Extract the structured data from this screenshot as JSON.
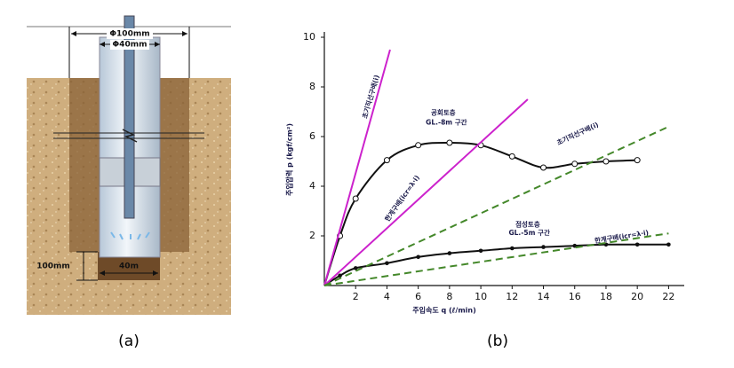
{
  "diagram": {
    "outer_diameter": "Φ100mm",
    "inner_diameter": "Φ40mm",
    "depth": "100mm",
    "bottom_width": "40m",
    "label": "(a)"
  },
  "chart_data": {
    "type": "line",
    "label": "(b)",
    "x_label": "주입속도 q (ℓ/min)",
    "y_label": "주입압력 p (kgf/cm²)",
    "xlim": [
      0,
      23
    ],
    "ylim": [
      0,
      10
    ],
    "xticks": [
      2,
      4,
      6,
      8,
      10,
      12,
      14,
      16,
      18,
      20,
      22
    ],
    "yticks": [
      2,
      4,
      6,
      8,
      10
    ],
    "series": [
      {
        "color": "#111111",
        "dash": "none",
        "marker": "circle",
        "smooth": true,
        "x": [
          0,
          1,
          2,
          4,
          6,
          8,
          10,
          12,
          14,
          16,
          18,
          20
        ],
        "values": [
          0,
          2,
          3.5,
          5.05,
          5.65,
          5.75,
          5.65,
          5.2,
          4.75,
          4.9,
          5.0,
          5.05
        ]
      },
      {
        "color": "#111111",
        "dash": "none",
        "marker": "dot",
        "smooth": true,
        "x": [
          0,
          1,
          2,
          4,
          6,
          8,
          10,
          12,
          14,
          16,
          18,
          20,
          22
        ],
        "values": [
          0,
          0.4,
          0.7,
          0.9,
          1.15,
          1.3,
          1.4,
          1.5,
          1.55,
          1.6,
          1.65,
          1.65,
          1.65
        ]
      },
      {
        "color": "#cc22cc",
        "dash": "none",
        "marker": "none",
        "smooth": false,
        "x": [
          0,
          4.2
        ],
        "values": [
          0,
          9.5
        ]
      },
      {
        "color": "#cc22cc",
        "dash": "none",
        "marker": "none",
        "smooth": false,
        "x": [
          0,
          13
        ],
        "values": [
          0,
          7.5
        ]
      },
      {
        "color": "#44882a",
        "dash": "8 5",
        "marker": "none",
        "smooth": false,
        "x": [
          0,
          22
        ],
        "values": [
          0,
          6.4
        ]
      },
      {
        "color": "#44882a",
        "dash": "8 5",
        "marker": "none",
        "smooth": false,
        "x": [
          0,
          22
        ],
        "values": [
          0,
          2.1
        ]
      }
    ],
    "annotations": [
      "초기직선구배(i)",
      "공회토층",
      "GL.-8m 구간",
      "한계구배(icr=λ·i)",
      "초기직선구배(i)",
      "점성토층",
      "GL.-5m 구간",
      "한계구배(icr=λ·i)"
    ]
  }
}
